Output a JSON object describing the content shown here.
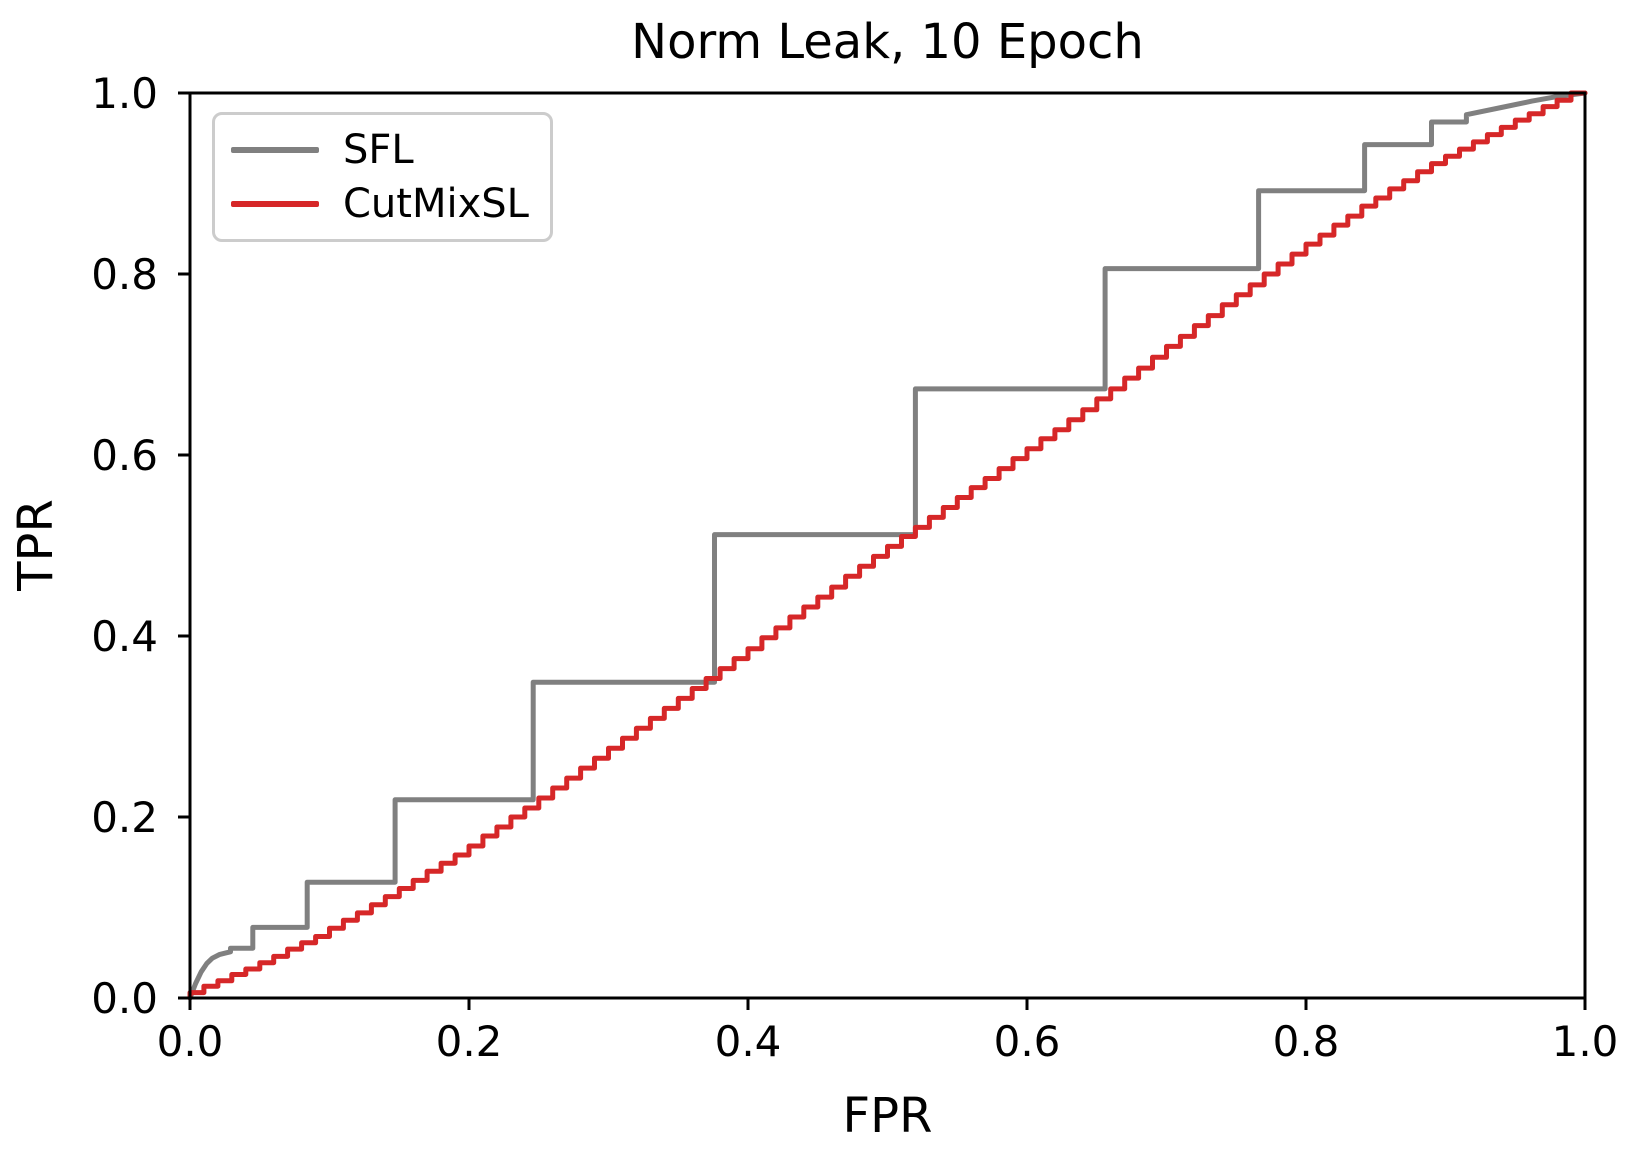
{
  "figure": {
    "background": "#ffffff",
    "axis_color": "#000000"
  },
  "chart_data": {
    "type": "line",
    "title": "Norm Leak, 10 Epoch",
    "xlabel": "FPR",
    "ylabel": "TPR",
    "xlim": [
      0.0,
      1.0
    ],
    "ylim": [
      0.0,
      1.0
    ],
    "grid": false,
    "xticks": [
      0.0,
      0.2,
      0.4,
      0.6,
      0.8,
      1.0
    ],
    "xtick_labels": [
      "0.0",
      "0.2",
      "0.4",
      "0.6",
      "0.8",
      "1.0"
    ],
    "yticks": [
      0.0,
      0.2,
      0.4,
      0.6,
      0.8,
      1.0
    ],
    "ytick_labels": [
      "0.0",
      "0.2",
      "0.4",
      "0.6",
      "0.8",
      "1.0"
    ],
    "legend": {
      "position": "upper-left",
      "entries": [
        {
          "label": "SFL",
          "color": "#808080"
        },
        {
          "label": "CutMixSL",
          "color": "#d62728"
        }
      ]
    },
    "series": [
      {
        "name": "SFL",
        "color": "#808080",
        "linewidth": 5,
        "drawstyle": "line",
        "points": [
          [
            0.0,
            0.0
          ],
          [
            0.004,
            0.016
          ],
          [
            0.008,
            0.029
          ],
          [
            0.012,
            0.038
          ],
          [
            0.016,
            0.044
          ],
          [
            0.021,
            0.048
          ],
          [
            0.026,
            0.05
          ],
          [
            0.029,
            0.051
          ],
          [
            0.029,
            0.055
          ],
          [
            0.045,
            0.055
          ],
          [
            0.045,
            0.078
          ],
          [
            0.084,
            0.078
          ],
          [
            0.084,
            0.128
          ],
          [
            0.147,
            0.128
          ],
          [
            0.147,
            0.219
          ],
          [
            0.246,
            0.219
          ],
          [
            0.246,
            0.349
          ],
          [
            0.376,
            0.349
          ],
          [
            0.376,
            0.512
          ],
          [
            0.52,
            0.512
          ],
          [
            0.52,
            0.673
          ],
          [
            0.656,
            0.673
          ],
          [
            0.656,
            0.806
          ],
          [
            0.766,
            0.806
          ],
          [
            0.766,
            0.892
          ],
          [
            0.842,
            0.892
          ],
          [
            0.842,
            0.943
          ],
          [
            0.89,
            0.943
          ],
          [
            0.89,
            0.968
          ],
          [
            0.915,
            0.968
          ],
          [
            0.915,
            0.976
          ],
          [
            0.94,
            0.984
          ],
          [
            0.962,
            0.991
          ],
          [
            0.98,
            0.996
          ],
          [
            1.0,
            1.0
          ]
        ]
      },
      {
        "name": "CutMixSL",
        "color": "#d62728",
        "linewidth": 5,
        "drawstyle": "steps-pre",
        "points": [
          [
            0.0,
            0.0
          ],
          [
            0.01,
            0.006
          ],
          [
            0.02,
            0.013
          ],
          [
            0.03,
            0.019
          ],
          [
            0.04,
            0.026
          ],
          [
            0.05,
            0.032
          ],
          [
            0.06,
            0.039
          ],
          [
            0.07,
            0.046
          ],
          [
            0.08,
            0.054
          ],
          [
            0.09,
            0.061
          ],
          [
            0.1,
            0.068
          ],
          [
            0.11,
            0.077
          ],
          [
            0.12,
            0.086
          ],
          [
            0.13,
            0.094
          ],
          [
            0.14,
            0.103
          ],
          [
            0.15,
            0.112
          ],
          [
            0.16,
            0.121
          ],
          [
            0.17,
            0.13
          ],
          [
            0.18,
            0.14
          ],
          [
            0.19,
            0.149
          ],
          [
            0.2,
            0.158
          ],
          [
            0.21,
            0.168
          ],
          [
            0.22,
            0.179
          ],
          [
            0.23,
            0.189
          ],
          [
            0.24,
            0.2
          ],
          [
            0.25,
            0.21
          ],
          [
            0.26,
            0.221
          ],
          [
            0.27,
            0.232
          ],
          [
            0.28,
            0.243
          ],
          [
            0.29,
            0.254
          ],
          [
            0.3,
            0.265
          ],
          [
            0.31,
            0.276
          ],
          [
            0.32,
            0.287
          ],
          [
            0.33,
            0.298
          ],
          [
            0.34,
            0.309
          ],
          [
            0.35,
            0.32
          ],
          [
            0.36,
            0.331
          ],
          [
            0.37,
            0.342
          ],
          [
            0.38,
            0.353
          ],
          [
            0.39,
            0.364
          ],
          [
            0.4,
            0.375
          ],
          [
            0.41,
            0.386
          ],
          [
            0.42,
            0.398
          ],
          [
            0.43,
            0.409
          ],
          [
            0.44,
            0.421
          ],
          [
            0.45,
            0.432
          ],
          [
            0.46,
            0.443
          ],
          [
            0.47,
            0.454
          ],
          [
            0.48,
            0.466
          ],
          [
            0.49,
            0.477
          ],
          [
            0.5,
            0.488
          ],
          [
            0.51,
            0.499
          ],
          [
            0.52,
            0.51
          ],
          [
            0.53,
            0.52
          ],
          [
            0.54,
            0.531
          ],
          [
            0.55,
            0.542
          ],
          [
            0.56,
            0.553
          ],
          [
            0.57,
            0.564
          ],
          [
            0.58,
            0.574
          ],
          [
            0.59,
            0.585
          ],
          [
            0.6,
            0.596
          ],
          [
            0.61,
            0.607
          ],
          [
            0.62,
            0.618
          ],
          [
            0.63,
            0.628
          ],
          [
            0.64,
            0.639
          ],
          [
            0.65,
            0.65
          ],
          [
            0.66,
            0.662
          ],
          [
            0.67,
            0.673
          ],
          [
            0.68,
            0.685
          ],
          [
            0.69,
            0.696
          ],
          [
            0.7,
            0.708
          ],
          [
            0.71,
            0.72
          ],
          [
            0.72,
            0.731
          ],
          [
            0.73,
            0.743
          ],
          [
            0.74,
            0.754
          ],
          [
            0.75,
            0.766
          ],
          [
            0.76,
            0.777
          ],
          [
            0.77,
            0.788
          ],
          [
            0.78,
            0.8
          ],
          [
            0.79,
            0.811
          ],
          [
            0.8,
            0.822
          ],
          [
            0.81,
            0.833
          ],
          [
            0.82,
            0.843
          ],
          [
            0.83,
            0.854
          ],
          [
            0.84,
            0.864
          ],
          [
            0.85,
            0.875
          ],
          [
            0.86,
            0.884
          ],
          [
            0.87,
            0.894
          ],
          [
            0.88,
            0.903
          ],
          [
            0.89,
            0.913
          ],
          [
            0.9,
            0.922
          ],
          [
            0.91,
            0.93
          ],
          [
            0.92,
            0.938
          ],
          [
            0.93,
            0.946
          ],
          [
            0.94,
            0.954
          ],
          [
            0.95,
            0.962
          ],
          [
            0.96,
            0.97
          ],
          [
            0.97,
            0.977
          ],
          [
            0.98,
            0.985
          ],
          [
            0.99,
            0.992
          ],
          [
            1.0,
            1.0
          ]
        ]
      }
    ]
  }
}
